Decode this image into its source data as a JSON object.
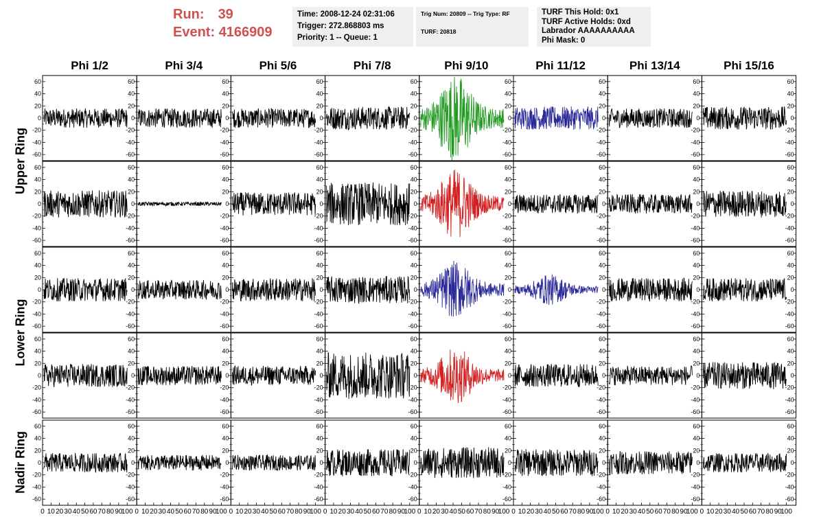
{
  "run_info": {
    "run_label": "Run:",
    "run_value": "39",
    "event_label": "Event:",
    "event_value": "4166909"
  },
  "trigger_box": {
    "time": "Time: 2008-12-24 02:31:06",
    "trigger": "Trigger: 272.868803 ms",
    "priority": "Priority: 1 -- Queue: 1"
  },
  "trig_box": {
    "trig": "Trig Num: 20809 -- Trig Type: RF",
    "turf": "TURF: 20818"
  },
  "turf_box": {
    "this_hold": "TURF This Hold: 0x1",
    "active_holds": "TURF Active Holds: 0xd",
    "labrador": "Labrador AAAAAAAAAA",
    "phi_mask": "Phi Mask: 0"
  },
  "columns": [
    "Phi 1/2",
    "Phi 3/4",
    "Phi 5/6",
    "Phi 7/8",
    "Phi 9/10",
    "Phi 11/12",
    "Phi 13/14",
    "Phi 15/16"
  ],
  "rows": [
    {
      "label": "Upper Ring",
      "subrows": 2
    },
    {
      "label": "Lower Ring",
      "subrows": 2
    },
    {
      "label": "Nadir Ring",
      "subrows": 1
    }
  ],
  "colors": {
    "default": "#000000",
    "green": "#1f9a1f",
    "blue": "#2a2a9a",
    "red": "#d42020",
    "title": "#d05050"
  },
  "chart_data": {
    "type": "line",
    "ylim": [
      -70,
      70
    ],
    "y_ticks": [
      "60",
      "40",
      "20",
      "0",
      "-20",
      "-40",
      "-60"
    ],
    "xlim": [
      0,
      100
    ],
    "x_ticks": [
      "0",
      "10",
      "20",
      "30",
      "40",
      "50",
      "60",
      "70",
      "80",
      "90",
      "100"
    ],
    "grid": false,
    "panels": [
      [
        {
          "amp": 10,
          "color": "default"
        },
        {
          "amp": 10,
          "color": "default"
        },
        {
          "amp": 10,
          "color": "default"
        },
        {
          "amp": 12,
          "color": "default"
        },
        {
          "amp": 40,
          "color": "green",
          "burst": true
        },
        {
          "amp": 12,
          "color": "blue"
        },
        {
          "amp": 10,
          "color": "default"
        },
        {
          "amp": 12,
          "color": "default"
        }
      ],
      [
        {
          "amp": 14,
          "color": "default"
        },
        {
          "amp": 2,
          "color": "default"
        },
        {
          "amp": 12,
          "color": "default"
        },
        {
          "amp": 22,
          "color": "default"
        },
        {
          "amp": 32,
          "color": "red",
          "burst": true
        },
        {
          "amp": 10,
          "color": "default"
        },
        {
          "amp": 10,
          "color": "default"
        },
        {
          "amp": 14,
          "color": "default"
        }
      ],
      [
        {
          "amp": 12,
          "color": "default"
        },
        {
          "amp": 10,
          "color": "default"
        },
        {
          "amp": 12,
          "color": "default"
        },
        {
          "amp": 14,
          "color": "default"
        },
        {
          "amp": 26,
          "color": "blue",
          "burst": true
        },
        {
          "amp": 14,
          "color": "blue",
          "burst": true
        },
        {
          "amp": 12,
          "color": "default"
        },
        {
          "amp": 12,
          "color": "default"
        }
      ],
      [
        {
          "amp": 12,
          "color": "default"
        },
        {
          "amp": 10,
          "color": "default"
        },
        {
          "amp": 10,
          "color": "default"
        },
        {
          "amp": 24,
          "color": "default"
        },
        {
          "amp": 26,
          "color": "red",
          "burst": true
        },
        {
          "amp": 12,
          "color": "default"
        },
        {
          "amp": 10,
          "color": "default"
        },
        {
          "amp": 14,
          "color": "default"
        }
      ],
      [
        {
          "amp": 10,
          "color": "default"
        },
        {
          "amp": 8,
          "color": "default"
        },
        {
          "amp": 8,
          "color": "default"
        },
        {
          "amp": 14,
          "color": "default"
        },
        {
          "amp": 16,
          "color": "default"
        },
        {
          "amp": 14,
          "color": "default"
        },
        {
          "amp": 12,
          "color": "default"
        },
        {
          "amp": 10,
          "color": "default"
        }
      ]
    ]
  }
}
